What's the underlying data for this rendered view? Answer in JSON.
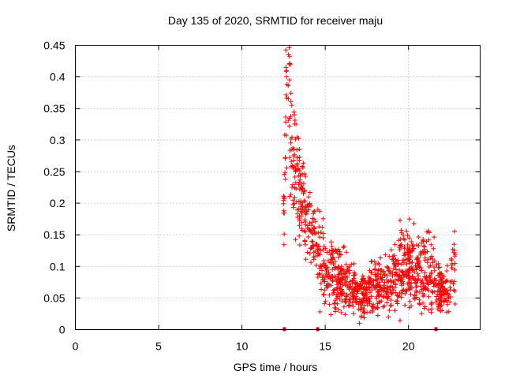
{
  "chart_data": {
    "type": "scatter",
    "title": "Day 135 of 2020, SRMTID for receiver maju",
    "xlabel": "GPS time / hours",
    "ylabel": "SRMTID / TECUs",
    "xlim": [
      0,
      24.3
    ],
    "ylim": [
      0,
      0.45
    ],
    "xticks": [
      0,
      5,
      10,
      15,
      20
    ],
    "yticks": [
      0,
      0.05,
      0.1,
      0.15,
      0.2,
      0.25,
      0.3,
      0.35,
      0.4,
      0.45
    ],
    "xtick_labels": [
      "0",
      "5",
      "10",
      "15",
      "20"
    ],
    "ytick_labels": [
      "0",
      "0.05",
      "0.1",
      "0.15",
      "0.2",
      "0.25",
      "0.3",
      "0.35",
      "0.4",
      "0.45"
    ],
    "grid": true,
    "marker": "plus",
    "series_color": "#ff0000",
    "gap_marker_color": "#cc0000",
    "gap_markers_x": [
      12.55,
      14.55,
      21.65
    ],
    "trend": {
      "name": "SRMTID",
      "x": [
        12.5,
        12.65,
        12.75,
        12.85,
        13.0,
        13.2,
        13.4,
        13.6,
        13.8,
        14.0,
        14.2,
        14.4,
        14.6,
        14.8,
        15.0,
        15.5,
        16.0,
        16.5,
        17.0,
        17.5,
        18.0,
        18.5,
        19.0,
        19.5,
        20.0,
        20.5,
        21.0,
        21.5,
        21.9,
        22.2,
        22.5,
        22.8
      ],
      "y": [
        0.17,
        0.33,
        0.38,
        0.36,
        0.3,
        0.26,
        0.22,
        0.2,
        0.18,
        0.17,
        0.16,
        0.14,
        0.12,
        0.1,
        0.09,
        0.085,
        0.075,
        0.07,
        0.06,
        0.055,
        0.07,
        0.07,
        0.075,
        0.1,
        0.1,
        0.09,
        0.1,
        0.085,
        0.06,
        0.06,
        0.07,
        0.1
      ]
    },
    "notable_points": [
      {
        "x": 12.85,
        "y": 0.42
      },
      {
        "x": 12.9,
        "y": 0.42
      },
      {
        "x": 20.05,
        "y": 0.175
      },
      {
        "x": 17.05,
        "y": 0.01
      }
    ]
  }
}
